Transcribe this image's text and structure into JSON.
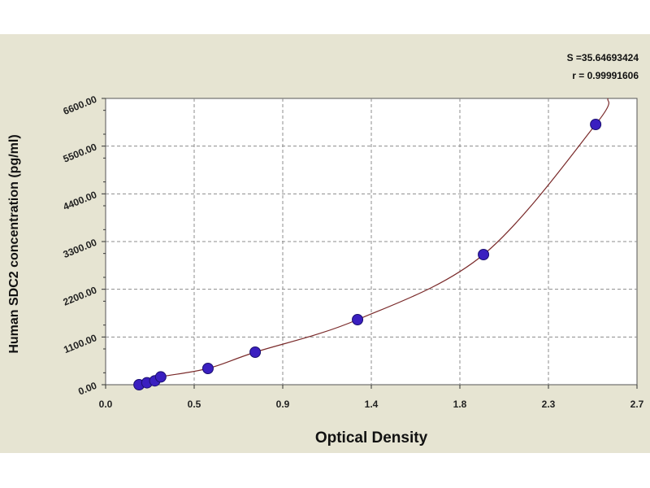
{
  "chart_data": {
    "type": "scatter",
    "xlabel": "Optical Density",
    "ylabel": "Human SDC2 concentration (pg/ml)",
    "xlim": [
      0.0,
      2.7
    ],
    "ylim": [
      0,
      6600
    ],
    "x_ticks": [
      "0.0",
      "0.5",
      "0.9",
      "1.4",
      "1.8",
      "2.3",
      "2.7"
    ],
    "y_ticks": [
      "0.00",
      "1100.00",
      "2200.00",
      "3300.00",
      "4400.00",
      "5500.00",
      "6600.00"
    ],
    "grid": true,
    "fit_stats": {
      "s": "S =35.64693424",
      "r": "r = 0.99991606"
    },
    "series": [
      {
        "marker_color": "#3a1fc0",
        "points": [
          {
            "x": 0.17,
            "y": 0
          },
          {
            "x": 0.21,
            "y": 45
          },
          {
            "x": 0.25,
            "y": 90
          },
          {
            "x": 0.28,
            "y": 180
          },
          {
            "x": 0.52,
            "y": 375
          },
          {
            "x": 0.76,
            "y": 750
          },
          {
            "x": 1.28,
            "y": 1500
          },
          {
            "x": 1.92,
            "y": 3000
          },
          {
            "x": 2.49,
            "y": 6000
          }
        ],
        "fit_color": "#7a2a2a"
      }
    ]
  }
}
